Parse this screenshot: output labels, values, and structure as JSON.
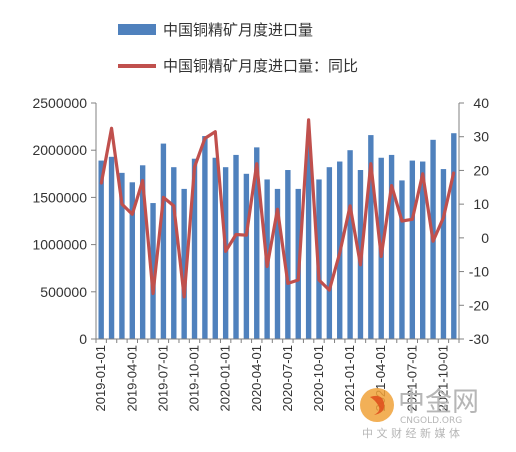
{
  "chart_data": {
    "type": "bar+line",
    "title": "",
    "legend": [
      {
        "name": "中国铜精矿月度进口量",
        "type": "bar",
        "color": "#4f81bd"
      },
      {
        "name": "中国铜精矿月度进口量：同比",
        "type": "line",
        "color": "#c0504d"
      }
    ],
    "legend_position": "top",
    "grid": false,
    "y_left": {
      "ticks": [
        "0",
        "500000",
        "1000000",
        "1500000",
        "2000000",
        "2500000"
      ],
      "min": 0,
      "max": 2500000
    },
    "y_right": {
      "ticks": [
        "-30",
        "-20",
        "-10",
        "0",
        "10",
        "20",
        "30",
        "40"
      ],
      "min": -30,
      "max": 40
    },
    "x_tick_labels": [
      "2019-01-01",
      "2019-04-01",
      "2019-07-01",
      "2019-10-01",
      "2020-01-01",
      "2020-04-01",
      "2020-07-01",
      "2020-10-01",
      "2021-01-01",
      "2021-04-01",
      "2021-07-01",
      "2021-10-01"
    ],
    "bar_values": [
      1890000,
      1930000,
      1760000,
      1660000,
      1840000,
      1440000,
      2070000,
      1820000,
      1590000,
      1910000,
      2150000,
      1920000,
      1820000,
      1950000,
      1750000,
      2030000,
      1690000,
      1590000,
      1790000,
      1590000,
      2080000,
      1690000,
      1820000,
      1880000,
      2000000,
      1790000,
      2160000,
      1920000,
      1950000,
      1680000,
      1890000,
      1880000,
      2110000,
      1800000,
      2180000
    ],
    "line_values": [
      16,
      32.5,
      10,
      7,
      17,
      -16.5,
      12,
      9.5,
      -17.5,
      21,
      29.5,
      31.5,
      -4,
      1,
      0.8,
      22,
      -8.5,
      8.5,
      -13.5,
      -12.5,
      35,
      -12.5,
      -15.5,
      -4.5,
      9.5,
      -8,
      22,
      -5.5,
      15.5,
      5,
      5.5,
      19,
      -1,
      6,
      19.5
    ]
  },
  "watermark": {
    "name": "中金网",
    "sub": "中 文 财 经 新 媒 体",
    "domain": "CNGOLD.ORG",
    "colors": {
      "logo": "#f0a23a",
      "logo_inner": "#e0521e",
      "text": "#b6b6b6"
    }
  }
}
